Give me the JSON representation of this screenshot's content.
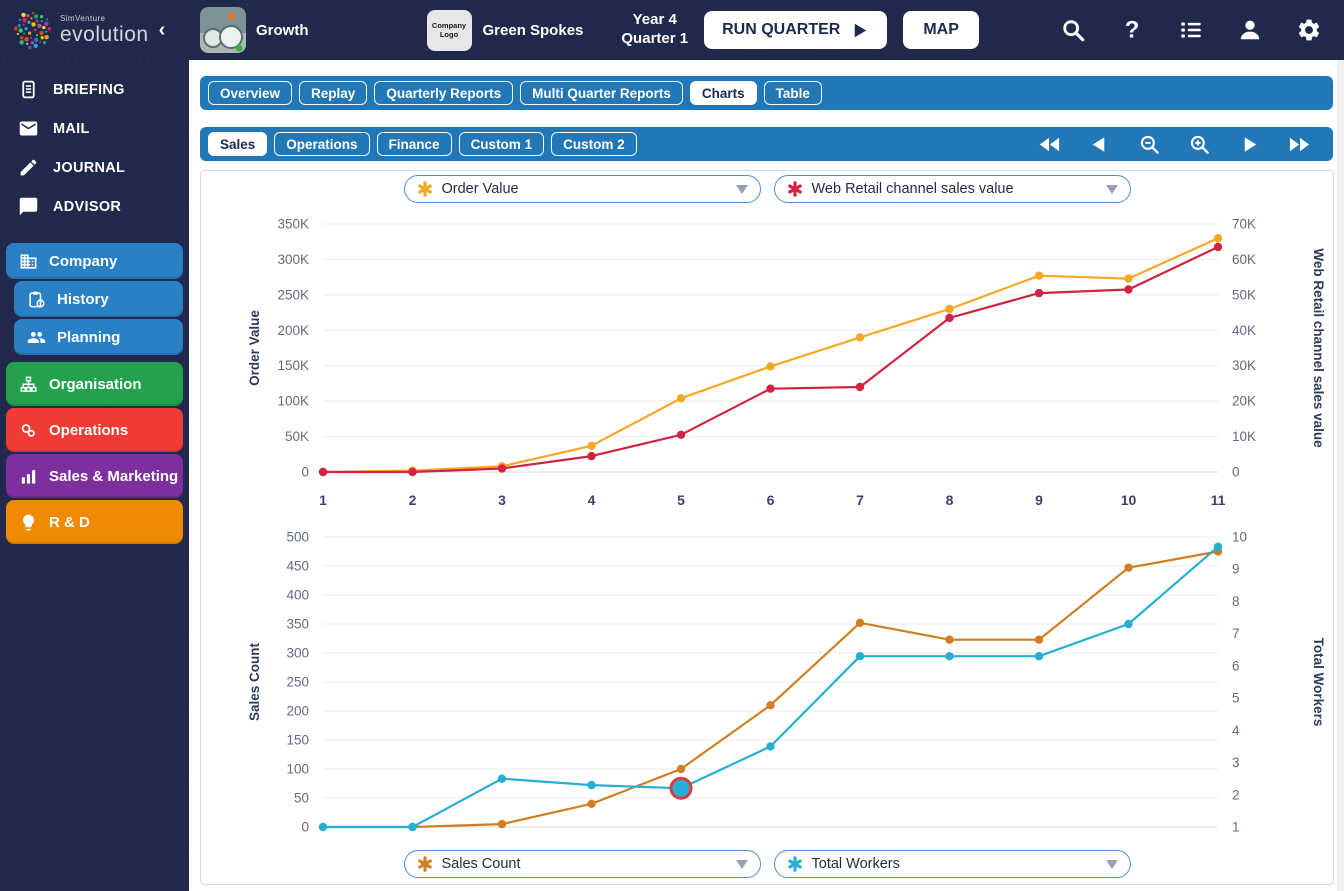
{
  "app": {
    "brand_small": "SimVenture",
    "brand": "evolution",
    "collapse_chevron": "‹",
    "scenario": "Growth",
    "company_logo_label": "Company Logo",
    "company_name": "Green Spokes",
    "period_line1": "Year 4",
    "period_line2": "Quarter 1",
    "run_quarter_label": "RUN QUARTER",
    "map_label": "MAP"
  },
  "topbar_icons": [
    "search",
    "help",
    "list",
    "user",
    "settings"
  ],
  "sidebar": {
    "items": [
      {
        "label": "BRIEFING",
        "icon": "briefing"
      },
      {
        "label": "MAIL",
        "icon": "mail"
      },
      {
        "label": "JOURNAL",
        "icon": "journal"
      },
      {
        "label": "ADVISOR",
        "icon": "advisor"
      }
    ],
    "sections": [
      {
        "label": "Company",
        "icon": "company",
        "color": "#2980C4",
        "indent": false,
        "tall": false,
        "gap_top": false
      },
      {
        "label": "History",
        "icon": "history",
        "color": "#2980C4",
        "indent": true,
        "tall": false,
        "gap_top": false
      },
      {
        "label": "Planning",
        "icon": "planning",
        "color": "#2980C4",
        "indent": true,
        "tall": false,
        "gap_top": false
      },
      {
        "label": "Organisation",
        "icon": "organisation",
        "color": "#23A14D",
        "indent": false,
        "tall": true,
        "gap_top": true
      },
      {
        "label": "Operations",
        "icon": "operations",
        "color": "#F23B33",
        "indent": false,
        "tall": true,
        "gap_top": false
      },
      {
        "label": "Sales & Marketing",
        "icon": "sales",
        "color": "#7D2F9D",
        "indent": false,
        "tall": true,
        "gap_top": false
      },
      {
        "label": "R & D",
        "icon": "rnd",
        "color": "#F08A00",
        "indent": false,
        "tall": true,
        "gap_top": false
      }
    ]
  },
  "tabs_primary": [
    {
      "label": "Overview",
      "active": false
    },
    {
      "label": "Replay",
      "active": false
    },
    {
      "label": "Quarterly Reports",
      "active": false
    },
    {
      "label": "Multi Quarter Reports",
      "active": false
    },
    {
      "label": "Charts",
      "active": true
    },
    {
      "label": "Table",
      "active": false
    }
  ],
  "tabs_secondary": [
    {
      "label": "Sales",
      "active": true
    },
    {
      "label": "Operations",
      "active": false
    },
    {
      "label": "Finance",
      "active": false
    },
    {
      "label": "Custom 1",
      "active": false
    },
    {
      "label": "Custom 2",
      "active": false
    }
  ],
  "playback": [
    "rewind",
    "step-back",
    "zoom-out",
    "zoom-in",
    "play",
    "fast-forward"
  ],
  "selectors": {
    "top": [
      {
        "label": "Order Value",
        "marker_color": "#F7A823"
      },
      {
        "label": "Web Retail channel sales value",
        "marker_color": "#D02440"
      }
    ],
    "bottom": [
      {
        "label": "Sales Count",
        "marker_color": "#D07E22"
      },
      {
        "label": "Total Workers",
        "marker_color": "#26AFD4"
      }
    ]
  },
  "chart_data": [
    {
      "type": "line",
      "x": [
        1,
        2,
        3,
        4,
        5,
        6,
        7,
        8,
        9,
        10,
        11
      ],
      "show_x_labels": true,
      "left_axis": {
        "title": "Order Value",
        "min": 0,
        "max": 350000,
        "step": 50000,
        "format": "K"
      },
      "right_axis": {
        "title": "Web Retail channel sales value",
        "min": 0,
        "max": 70000,
        "step": 10000,
        "format": "K"
      },
      "series": [
        {
          "name": "Order Value",
          "axis": "left",
          "color": "#F7A823",
          "values": [
            0,
            2000,
            8000,
            37000,
            104000,
            149000,
            190000,
            230000,
            277000,
            273000,
            330000
          ]
        },
        {
          "name": "Web Retail channel sales value",
          "axis": "right",
          "color": "#D02440",
          "values": [
            0,
            0,
            1000,
            4500,
            10500,
            23500,
            24000,
            43500,
            50500,
            51500,
            63500
          ]
        }
      ]
    },
    {
      "type": "line",
      "x": [
        1,
        2,
        3,
        4,
        5,
        6,
        7,
        8,
        9,
        10,
        11
      ],
      "show_x_labels": false,
      "left_axis": {
        "title": "Sales Count",
        "min": 0,
        "max": 500,
        "step": 50,
        "format": "plain"
      },
      "right_axis": {
        "title": "Total Workers",
        "min": 1,
        "max": 10,
        "step": 1,
        "format": "plain"
      },
      "series": [
        {
          "name": "Sales Count",
          "axis": "left",
          "color": "#D07E22",
          "values": [
            0,
            0,
            5,
            40,
            100,
            210,
            352,
            323,
            323,
            447,
            475
          ]
        },
        {
          "name": "Total Workers",
          "axis": "right",
          "color": "#26AFD4",
          "values": [
            1,
            1,
            2.5,
            2.3,
            2.2,
            3.5,
            6.3,
            6.3,
            6.3,
            7.3,
            9.7
          ],
          "highlight": {
            "index": 4,
            "ring_color": "#E03A3A"
          }
        }
      ]
    }
  ]
}
